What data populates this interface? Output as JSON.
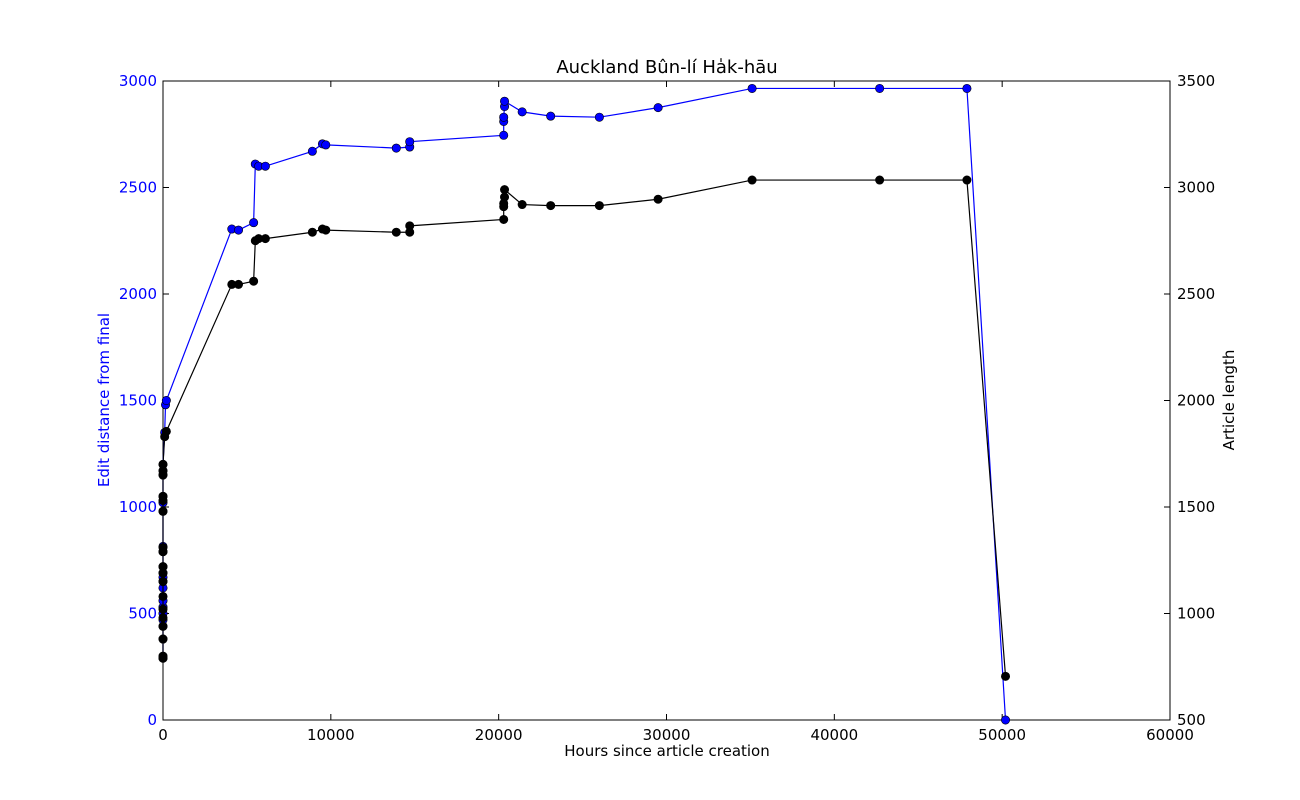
{
  "chart_data": {
    "type": "line",
    "title": "Auckland Bûn-lí Ha̍k-hāu",
    "xlabel": "Hours since article creation",
    "ylabel_left": "Edit distance from final",
    "ylabel_right": "Article length",
    "xlim": [
      0,
      60000
    ],
    "ylim_left": [
      0,
      3000
    ],
    "ylim_right": [
      500,
      3500
    ],
    "x_ticks": [
      0,
      10000,
      20000,
      30000,
      40000,
      50000,
      60000
    ],
    "y_ticks_left": [
      0,
      500,
      1000,
      1500,
      2000,
      2500,
      3000
    ],
    "y_ticks_right": [
      500,
      1000,
      1500,
      2000,
      2500,
      3000,
      3500
    ],
    "grid": false,
    "colors": {
      "left_axis": "#0000ff",
      "right_axis": "#000000"
    },
    "series": [
      {
        "axis": "left",
        "color": "#0000ff",
        "marker": "circle",
        "points": [
          [
            0,
            290
          ],
          [
            0,
            380
          ],
          [
            0,
            440
          ],
          [
            0,
            470
          ],
          [
            0,
            500
          ],
          [
            0,
            530
          ],
          [
            0,
            560
          ],
          [
            0,
            620
          ],
          [
            0,
            650
          ],
          [
            0,
            670
          ],
          [
            0,
            690
          ],
          [
            0,
            720
          ],
          [
            0,
            790
          ],
          [
            0,
            815
          ],
          [
            0,
            980
          ],
          [
            0,
            1020
          ],
          [
            0,
            1050
          ],
          [
            0,
            1150
          ],
          [
            0,
            1170
          ],
          [
            0,
            1200
          ],
          [
            100,
            1350
          ],
          [
            150,
            1480
          ],
          [
            200,
            1500
          ],
          [
            4100,
            2305
          ],
          [
            4500,
            2300
          ],
          [
            5400,
            2335
          ],
          [
            5500,
            2610
          ],
          [
            5700,
            2600
          ],
          [
            6100,
            2600
          ],
          [
            8900,
            2670
          ],
          [
            9500,
            2705
          ],
          [
            9700,
            2700
          ],
          [
            13900,
            2685
          ],
          [
            14700,
            2690
          ],
          [
            14700,
            2715
          ],
          [
            20300,
            2745
          ],
          [
            20300,
            2810
          ],
          [
            20300,
            2830
          ],
          [
            20350,
            2880
          ],
          [
            20350,
            2905
          ],
          [
            21400,
            2855
          ],
          [
            23100,
            2835
          ],
          [
            26000,
            2830
          ],
          [
            29500,
            2875
          ],
          [
            35100,
            2965
          ],
          [
            42700,
            2965
          ],
          [
            47900,
            2965
          ],
          [
            50200,
            0
          ]
        ]
      },
      {
        "axis": "right",
        "color": "#000000",
        "marker": "circle",
        "points": [
          [
            0,
            790
          ],
          [
            0,
            800
          ],
          [
            0,
            880
          ],
          [
            0,
            940
          ],
          [
            0,
            980
          ],
          [
            0,
            1020
          ],
          [
            0,
            1080
          ],
          [
            0,
            1150
          ],
          [
            0,
            1190
          ],
          [
            0,
            1220
          ],
          [
            0,
            1290
          ],
          [
            0,
            1310
          ],
          [
            0,
            1480
          ],
          [
            0,
            1530
          ],
          [
            0,
            1550
          ],
          [
            0,
            1650
          ],
          [
            0,
            1670
          ],
          [
            0,
            1700
          ],
          [
            100,
            1830
          ],
          [
            200,
            1855
          ],
          [
            4100,
            2545
          ],
          [
            4500,
            2545
          ],
          [
            5400,
            2560
          ],
          [
            5500,
            2750
          ],
          [
            5700,
            2760
          ],
          [
            6100,
            2760
          ],
          [
            8900,
            2790
          ],
          [
            9500,
            2805
          ],
          [
            9700,
            2800
          ],
          [
            13900,
            2790
          ],
          [
            14700,
            2790
          ],
          [
            14700,
            2820
          ],
          [
            20300,
            2850
          ],
          [
            20300,
            2910
          ],
          [
            20300,
            2925
          ],
          [
            20350,
            2955
          ],
          [
            20350,
            2990
          ],
          [
            21400,
            2920
          ],
          [
            23100,
            2915
          ],
          [
            26000,
            2915
          ],
          [
            29500,
            2945
          ],
          [
            35100,
            3035
          ],
          [
            42700,
            3035
          ],
          [
            47900,
            3035
          ],
          [
            50200,
            705
          ]
        ]
      }
    ]
  }
}
